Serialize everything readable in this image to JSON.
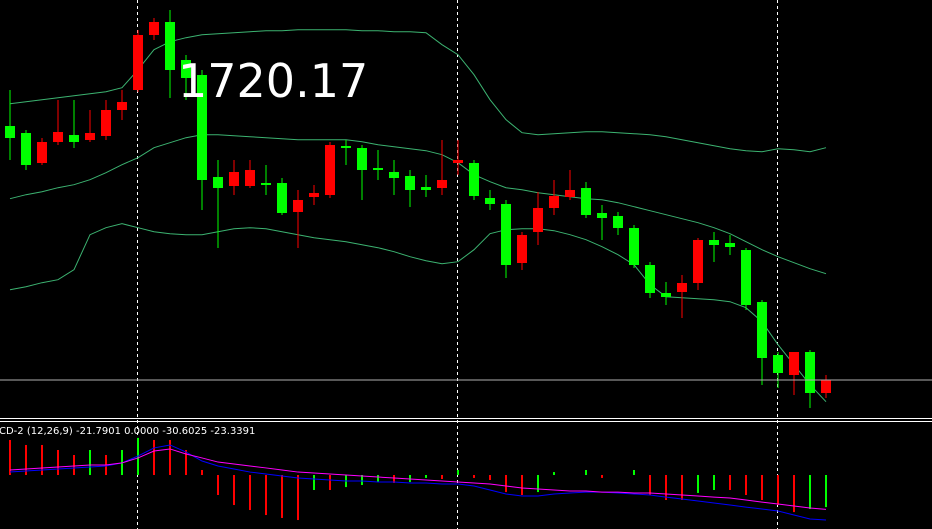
{
  "chart_data": [
    {
      "type": "candlestick",
      "up_color": "#ff0000",
      "down_color": "#00ff00",
      "open": [
        1745.57,
        1744.87,
        1741.87,
        1743.97,
        1744.67,
        1744.17,
        1744.57,
        1747.17,
        1749.17,
        1754.67,
        1755.97,
        1752.17,
        1750.67,
        1740.47,
        1739.57,
        1739.57,
        1739.87,
        1739.87,
        1736.97,
        1738.47,
        1738.67,
        1743.57,
        1743.37,
        1741.37,
        1740.97,
        1740.57,
        1739.47,
        1739.37,
        1741.87,
        1741.87,
        1738.37,
        1737.77,
        1731.87,
        1734.97,
        1737.37,
        1738.47,
        1739.37,
        1736.87,
        1736.57,
        1735.37,
        1731.67,
        1728.87,
        1728.97,
        1729.87,
        1734.17,
        1733.87,
        1733.17,
        1727.97,
        1722.67,
        1720.67,
        1722.97,
        1718.87
      ],
      "high": [
        1749.17,
        1745.17,
        1744.37,
        1748.17,
        1748.17,
        1747.17,
        1748.17,
        1749.17,
        1755.17,
        1756.37,
        1757.17,
        1752.67,
        1751.17,
        1742.17,
        1742.17,
        1742.17,
        1741.67,
        1740.37,
        1739.17,
        1739.67,
        1743.97,
        1744.17,
        1743.67,
        1743.17,
        1742.17,
        1741.17,
        1740.67,
        1744.17,
        1744.17,
        1742.17,
        1739.17,
        1738.17,
        1734.97,
        1738.97,
        1740.17,
        1741.17,
        1739.97,
        1737.67,
        1736.97,
        1735.67,
        1731.97,
        1729.97,
        1730.67,
        1734.37,
        1734.97,
        1734.67,
        1733.37,
        1728.17,
        1722.97,
        1722.97,
        1723.17,
        1720.67
      ],
      "low": [
        1742.17,
        1741.17,
        1741.67,
        1743.67,
        1743.37,
        1743.97,
        1744.17,
        1746.17,
        1748.97,
        1754.17,
        1748.37,
        1748.17,
        1737.17,
        1733.37,
        1738.67,
        1739.37,
        1738.67,
        1736.67,
        1733.37,
        1737.67,
        1738.37,
        1741.67,
        1738.17,
        1740.17,
        1738.67,
        1737.47,
        1738.47,
        1738.67,
        1740.67,
        1738.17,
        1737.17,
        1730.37,
        1731.17,
        1733.67,
        1736.67,
        1738.17,
        1736.37,
        1734.17,
        1734.67,
        1731.37,
        1728.37,
        1727.67,
        1726.37,
        1729.17,
        1731.97,
        1732.67,
        1727.17,
        1719.67,
        1719.37,
        1718.67,
        1717.37,
        1718.37
      ],
      "close": [
        1744.37,
        1741.67,
        1743.97,
        1744.97,
        1743.97,
        1744.87,
        1747.17,
        1747.97,
        1754.67,
        1755.97,
        1751.17,
        1750.37,
        1740.17,
        1739.37,
        1740.97,
        1741.17,
        1739.67,
        1736.87,
        1738.17,
        1738.87,
        1743.67,
        1743.37,
        1741.17,
        1741.17,
        1740.37,
        1739.17,
        1739.17,
        1740.17,
        1742.17,
        1738.57,
        1737.77,
        1731.67,
        1734.67,
        1737.37,
        1738.57,
        1739.17,
        1736.67,
        1736.37,
        1735.37,
        1731.67,
        1728.87,
        1728.47,
        1729.87,
        1734.17,
        1733.67,
        1733.47,
        1727.67,
        1722.37,
        1720.87,
        1722.97,
        1718.87,
        1720.17
      ],
      "series": [
        {
          "color": "#3cb371",
          "values": [
            1747.8,
            1748.0,
            1748.2,
            1748.4,
            1748.6,
            1748.8,
            1749.0,
            1749.4,
            1751.2,
            1753.2,
            1754.0,
            1754.4,
            1754.7,
            1754.8,
            1754.9,
            1755.0,
            1755.1,
            1755.1,
            1755.2,
            1755.2,
            1755.2,
            1755.2,
            1755.1,
            1755.1,
            1755.0,
            1755.0,
            1754.9,
            1753.7,
            1752.7,
            1750.7,
            1748.2,
            1746.2,
            1744.9,
            1744.7,
            1744.8,
            1744.9,
            1745.0,
            1745.0,
            1744.9,
            1744.8,
            1744.7,
            1744.5,
            1744.2,
            1743.9,
            1743.6,
            1743.3,
            1743.1,
            1743.0,
            1743.3,
            1743.2,
            1743.0,
            1743.4
          ]
        },
        {
          "color": "#3cb371",
          "values": [
            1738.3,
            1738.7,
            1739.0,
            1739.4,
            1739.7,
            1740.2,
            1740.9,
            1741.7,
            1742.4,
            1743.4,
            1743.9,
            1744.4,
            1744.7,
            1744.7,
            1744.6,
            1744.5,
            1744.4,
            1744.3,
            1744.2,
            1744.2,
            1744.2,
            1744.2,
            1744.0,
            1743.7,
            1743.5,
            1743.3,
            1743.1,
            1742.7,
            1741.9,
            1740.7,
            1740.0,
            1739.4,
            1739.2,
            1738.9,
            1738.7,
            1738.5,
            1738.3,
            1738.2,
            1737.9,
            1737.5,
            1737.1,
            1736.7,
            1736.3,
            1735.9,
            1735.4,
            1734.8,
            1734.0,
            1733.2,
            1732.5,
            1731.9,
            1731.3,
            1730.8
          ]
        },
        {
          "color": "#3cb371",
          "values": [
            1729.2,
            1729.5,
            1729.9,
            1730.2,
            1731.2,
            1734.7,
            1735.4,
            1735.8,
            1735.4,
            1735.0,
            1734.8,
            1734.7,
            1734.7,
            1735.0,
            1735.3,
            1735.4,
            1735.3,
            1735.0,
            1734.7,
            1734.4,
            1734.2,
            1734.0,
            1733.7,
            1733.4,
            1733.0,
            1732.5,
            1732.1,
            1731.8,
            1732.0,
            1733.2,
            1734.8,
            1735.2,
            1735.3,
            1735.3,
            1735.1,
            1734.7,
            1734.2,
            1733.5,
            1732.7,
            1731.7,
            1729.7,
            1728.5,
            1728.4,
            1728.3,
            1728.2,
            1728.0,
            1727.4,
            1726.0,
            1723.7,
            1721.7,
            1719.7,
            1718.0
          ]
        }
      ],
      "price_line": 1720.17,
      "price_line_color": "#b0b0b0",
      "ylim": [
        1716.37,
        1758.17
      ]
    },
    {
      "type": "macd",
      "title": "CD-2 (12,26,9) -21.7901 0.0000 -30.6025 -23.3391",
      "up_color": "#00ff00",
      "down_color": "#ff0000",
      "histogram": [
        23.8,
        20.4,
        20.4,
        17.0,
        13.6,
        17.0,
        13.6,
        17.0,
        25.2,
        23.8,
        23.8,
        17.0,
        3.4,
        -13.6,
        -20.4,
        -23.8,
        -27.2,
        -29.2,
        -30.6,
        -10.2,
        -10.2,
        -8.2,
        -6.8,
        -4.8,
        -5.4,
        -4.8,
        -2.0,
        -2.7,
        3.4,
        -2.0,
        -3.4,
        -11.6,
        -13.6,
        -11.6,
        2.0,
        0.0,
        3.4,
        -2.0,
        0.0,
        3.4,
        -13.6,
        -17.0,
        -17.0,
        -12.2,
        -10.2,
        -10.2,
        -13.6,
        -17.0,
        -20.4,
        -25.2,
        -23.1,
        -21.7901
      ],
      "series": [
        {
          "color": "#0000ff",
          "values": [
            2.0,
            2.7,
            3.4,
            4.1,
            4.8,
            5.4,
            6.1,
            8.2,
            12.9,
            18.4,
            20.4,
            15.6,
            9.5,
            6.1,
            4.1,
            2.0,
            0.7,
            -0.7,
            -2.0,
            -2.7,
            -3.4,
            -4.1,
            -4.1,
            -4.8,
            -4.8,
            -5.4,
            -5.4,
            -6.1,
            -6.1,
            -7.5,
            -10.2,
            -12.9,
            -14.3,
            -14.3,
            -12.9,
            -12.2,
            -11.6,
            -11.6,
            -12.2,
            -12.9,
            -13.6,
            -15.0,
            -16.3,
            -17.7,
            -19.0,
            -20.4,
            -21.8,
            -23.1,
            -24.5,
            -27.2,
            -29.9,
            -30.6025
          ]
        },
        {
          "color": "#ff00ff",
          "values": [
            3.4,
            4.1,
            4.8,
            5.4,
            6.1,
            6.8,
            6.8,
            8.2,
            11.6,
            16.3,
            17.7,
            14.3,
            11.6,
            8.8,
            7.5,
            6.1,
            4.8,
            3.4,
            2.0,
            1.4,
            0.7,
            0.0,
            -0.7,
            -1.4,
            -2.0,
            -2.7,
            -3.4,
            -4.1,
            -4.8,
            -5.4,
            -6.1,
            -7.5,
            -8.8,
            -9.5,
            -10.2,
            -10.9,
            -10.9,
            -11.6,
            -11.6,
            -12.2,
            -12.2,
            -12.9,
            -13.6,
            -14.3,
            -15.0,
            -15.6,
            -17.0,
            -18.4,
            -19.7,
            -21.1,
            -22.4,
            -23.3391
          ]
        }
      ],
      "ylim": [
        -36.7,
        36.7
      ]
    }
  ]
}
